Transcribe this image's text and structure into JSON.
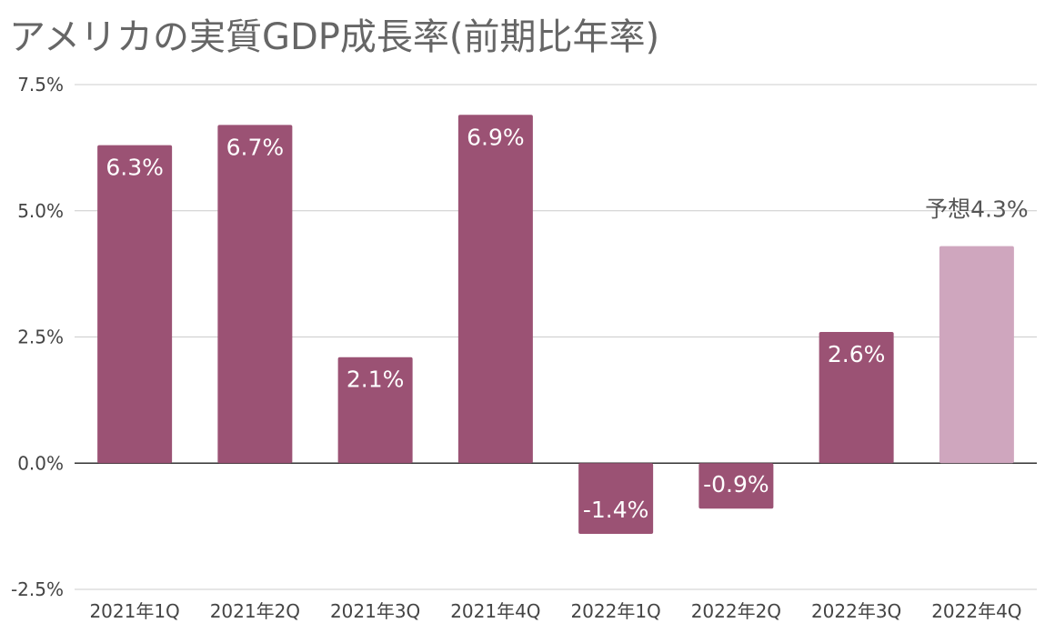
{
  "chart_data": {
    "type": "bar",
    "title": "アメリカの実質GDP成長率(前期比年率)",
    "xlabel": "",
    "ylabel": "",
    "categories": [
      "2021年1Q",
      "2021年2Q",
      "2021年3Q",
      "2021年4Q",
      "2022年1Q",
      "2022年2Q",
      "2022年3Q",
      "2022年4Q"
    ],
    "values": [
      6.3,
      6.7,
      2.1,
      6.9,
      -1.4,
      -0.9,
      2.6,
      4.3
    ],
    "data_labels": [
      "6.3%",
      "6.7%",
      "2.1%",
      "6.9%",
      "-1.4%",
      "-0.9%",
      "2.6%",
      "予想4.3%"
    ],
    "forecast": [
      false,
      false,
      false,
      false,
      false,
      false,
      false,
      true
    ],
    "ylim": [
      -2.5,
      7.5
    ],
    "y_ticks": [
      {
        "value": 7.5,
        "label": "7.5%"
      },
      {
        "value": 5.0,
        "label": "5.0%"
      },
      {
        "value": 2.5,
        "label": "2.5%"
      },
      {
        "value": 0.0,
        "label": "0.0%"
      },
      {
        "value": -2.5,
        "label": "-2.5%"
      }
    ],
    "grid": true,
    "legend": "none",
    "colors": {
      "bar": "#9b5274",
      "forecast_bar": "#cfa6be",
      "grid": "#cccccc",
      "zero_line": "#333333",
      "text": "#666666"
    }
  }
}
